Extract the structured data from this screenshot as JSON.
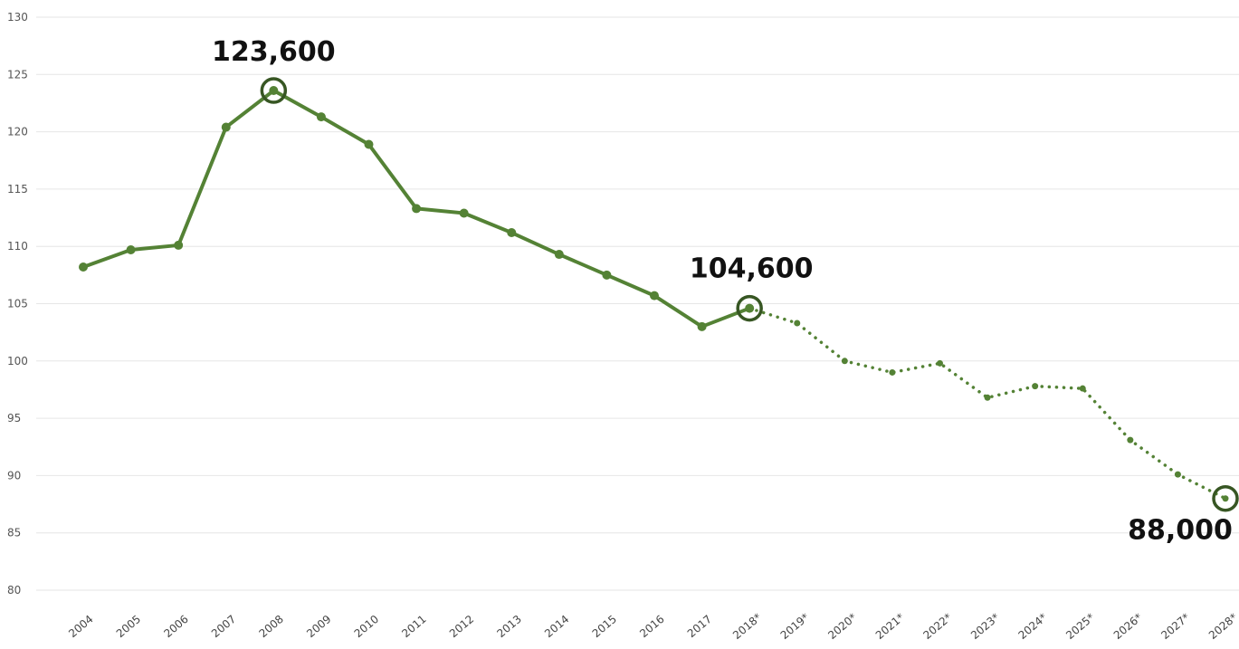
{
  "chart_data": {
    "type": "line",
    "title": "",
    "xlabel": "",
    "ylabel": "",
    "ylim": [
      80,
      130
    ],
    "yticks": [
      80,
      85,
      90,
      95,
      100,
      105,
      110,
      115,
      120,
      125,
      130
    ],
    "grid": true,
    "color": "#548235",
    "x": [
      "2004",
      "2005",
      "2006",
      "2007",
      "2008",
      "2009",
      "2010",
      "2011",
      "2012",
      "2013",
      "2014",
      "2015",
      "2016",
      "2017",
      "2018*",
      "2019*",
      "2020*",
      "2021*",
      "2022*",
      "2023*",
      "2024*",
      "2025*",
      "2026*",
      "2027*",
      "2028*"
    ],
    "series": [
      {
        "style": "solid",
        "x": [
          "2004",
          "2005",
          "2006",
          "2007",
          "2008",
          "2009",
          "2010",
          "2011",
          "2012",
          "2013",
          "2014",
          "2015",
          "2016",
          "2017",
          "2018*"
        ],
        "values": [
          108.2,
          109.7,
          110.1,
          120.4,
          123.6,
          121.3,
          118.9,
          113.3,
          112.9,
          111.2,
          109.3,
          107.5,
          105.7,
          103.0,
          104.6
        ]
      },
      {
        "style": "dotted",
        "x": [
          "2018*",
          "2019*",
          "2020*",
          "2021*",
          "2022*",
          "2023*",
          "2024*",
          "2025*",
          "2026*",
          "2027*",
          "2028*"
        ],
        "values": [
          104.6,
          103.3,
          100.0,
          99.0,
          99.8,
          96.8,
          97.8,
          97.6,
          93.1,
          90.1,
          88.0
        ]
      }
    ],
    "annotations": [
      {
        "x": "2008",
        "value": 123.6,
        "label": "123,600"
      },
      {
        "x": "2018*",
        "value": 104.6,
        "label": "104,600"
      },
      {
        "x": "2028*",
        "value": 88.0,
        "label": "88,000"
      }
    ]
  }
}
